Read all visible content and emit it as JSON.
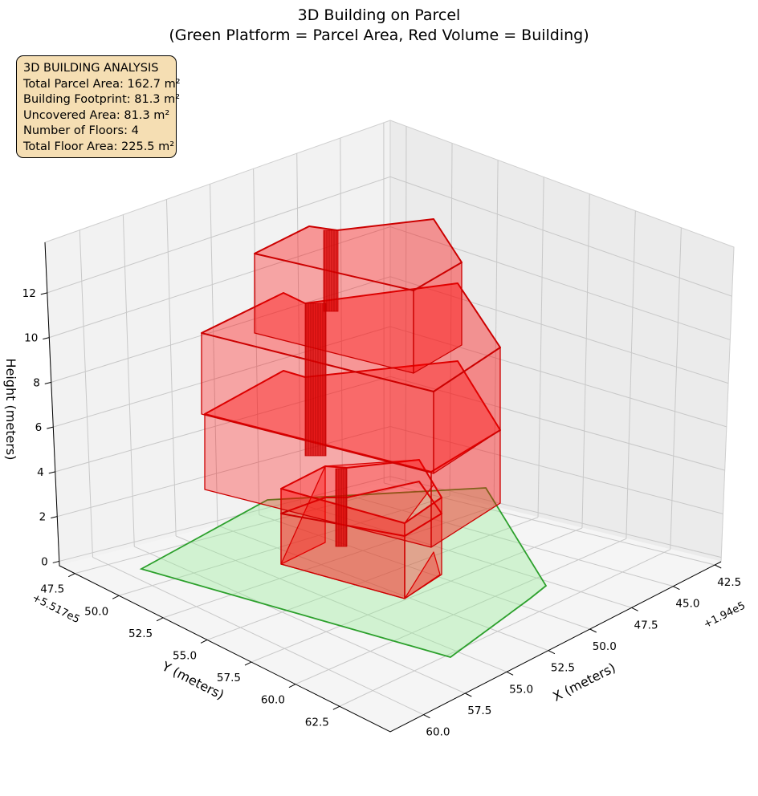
{
  "chart_data": {
    "type": "3d-polygon",
    "title": "3D Building on Parcel",
    "subtitle": "(Green Platform = Parcel Area, Red Volume = Building)",
    "xlabel": "X (meters)",
    "ylabel": "Y (meters)",
    "zlabel": "Height (meters)",
    "x_offset": "+1.94e5",
    "y_offset": "+5.517e5",
    "xticks": [
      "42.5",
      "45.0",
      "47.5",
      "50.0",
      "52.5",
      "55.0",
      "57.5",
      "60.0"
    ],
    "yticks": [
      "47.5",
      "50.0",
      "52.5",
      "55.0",
      "57.5",
      "60.0",
      "62.5"
    ],
    "zticks": [
      "0",
      "2",
      "4",
      "6",
      "8",
      "10",
      "12"
    ],
    "series": [
      {
        "name": "Green Platform = Parcel Area",
        "color": "#2ca02c",
        "fill": "#90ee90"
      },
      {
        "name": "Red Volume = Building",
        "color": "#cc0000",
        "fill": "#ff0000"
      }
    ]
  },
  "info_box": {
    "heading": "3D BUILDING ANALYSIS",
    "lines": [
      "Total Parcel Area: 162.7 m²",
      "Building Footprint: 81.3 m²",
      "Uncovered Area: 81.3 m²",
      "Number of Floors: 4",
      "Total Floor Area: 225.5 m²"
    ]
  }
}
